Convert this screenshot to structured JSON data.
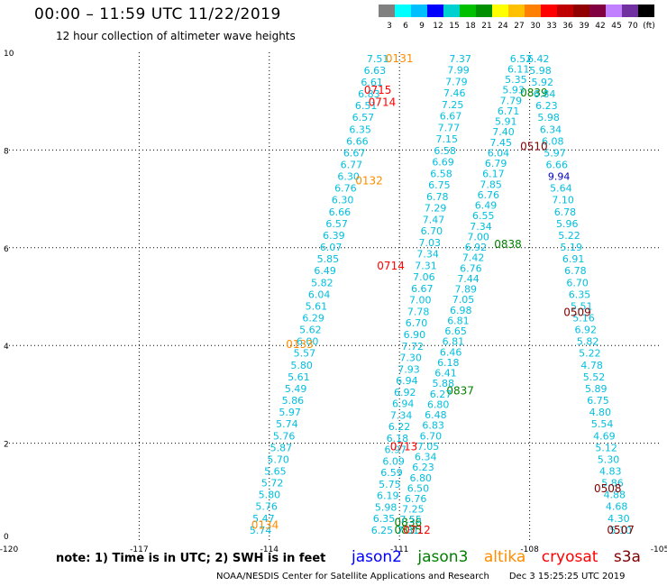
{
  "header": {
    "title": "00:00 – 11:59 UTC 11/22/2019",
    "subtitle": "12 hour collection of altimeter wave heights"
  },
  "color_scale": {
    "swatches": [
      "#808080",
      "#00ffff",
      "#00bfff",
      "#0000ff",
      "#00d0d0",
      "#00c000",
      "#009000",
      "#ffff00",
      "#ffc000",
      "#ff8000",
      "#ff0000",
      "#c00000",
      "#900000",
      "#800040",
      "#c080ff",
      "#7030a0",
      "#000000"
    ],
    "labels": [
      "3",
      "6",
      "9",
      "12",
      "15",
      "18",
      "21",
      "24",
      "27",
      "30",
      "33",
      "36",
      "39",
      "42",
      "45",
      "70",
      "(ft)"
    ]
  },
  "footer": {
    "note": "note:  1) Time is in UTC; 2) SWH is in feet",
    "satellites": [
      {
        "name": "jason2",
        "color": "#0000ff"
      },
      {
        "name": "jason3",
        "color": "#008000"
      },
      {
        "name": "altika",
        "color": "#ff8c00"
      },
      {
        "name": "cryosat",
        "color": "#ff0000"
      },
      {
        "name": "s3a",
        "color": "#800000"
      }
    ],
    "credit": "NOAA/NESDIS Center for Satellite Applications and Research",
    "timestamp": "Dec  3 15:25:25 UTC 2019"
  },
  "chart_data": {
    "type": "scatter",
    "xlim": [
      -120,
      -105
    ],
    "ylim": [
      0,
      10
    ],
    "x_ticks": [
      "-120",
      "-117",
      "-114",
      "-111",
      "-108",
      "-105"
    ],
    "y_ticks": [
      "0",
      "2",
      "4",
      "6",
      "8",
      "10"
    ],
    "grid": true,
    "tracks": [
      {
        "name": "0134",
        "satellite": "altika",
        "start": [
          -114.2,
          0.15
        ],
        "end": [
          -111.5,
          9.8
        ],
        "values": [
          "5.74",
          "5.47",
          "5.76",
          "5.80",
          "5.72",
          "5.65",
          "5.70",
          "5.87",
          "5.76",
          "5.74",
          "5.97",
          "5.86",
          "5.49",
          "5.61",
          "5.80",
          "5.57",
          "6.00",
          "5.62",
          "6.29",
          "5.61",
          "6.04",
          "5.82",
          "6.49",
          "5.85",
          "6.07",
          "6.39",
          "6.57",
          "6.66",
          "6.30",
          "6.76",
          "6.30",
          "6.77",
          "6.67",
          "6.66",
          "6.35",
          "6.57",
          "6.51",
          "6.83",
          "6.61",
          "6.63",
          "7.51"
        ],
        "labels": [
          {
            "text": "0134",
            "x": -114.1,
            "y": 0.25
          },
          {
            "text": "0133",
            "x": -113.3,
            "y": 3.95
          },
          {
            "text": "0132",
            "x": -111.7,
            "y": 7.3
          },
          {
            "text": "0131",
            "x": -111.0,
            "y": 9.8
          }
        ]
      },
      {
        "name": "0835",
        "satellite": "jason3",
        "start": [
          -111.4,
          0.15
        ],
        "end": [
          -109.6,
          9.8
        ],
        "values": [
          "6.25",
          "6.35",
          "5.98",
          "6.19",
          "5.75",
          "6.59",
          "6.09",
          "6.97",
          "6.18",
          "6.22",
          "7.34",
          "6.94",
          "6.92",
          "6.94",
          "7.93",
          "7.30",
          "7.72",
          "6.90",
          "6.70",
          "7.78",
          "7.00",
          "6.67",
          "7.06",
          "7.31",
          "7.34",
          "7.03",
          "6.70",
          "7.47",
          "7.29",
          "6.78",
          "6.75",
          "6.58",
          "6.69",
          "6.58",
          "7.15",
          "7.77",
          "6.67",
          "7.25",
          "7.46",
          "7.79",
          "7.99",
          "7.37"
        ],
        "labels": [
          {
            "text": "0835",
            "x": -110.8,
            "y": 0.15
          },
          {
            "text": "0836",
            "x": -110.8,
            "y": 0.3
          },
          {
            "text": "0837",
            "x": -109.6,
            "y": 3.0
          },
          {
            "text": "0838",
            "x": -108.5,
            "y": 6.0
          },
          {
            "text": "0839",
            "x": -107.9,
            "y": 9.1
          }
        ]
      },
      {
        "name": "0712",
        "satellite": "cryosat",
        "start": [
          -110.8,
          0.15
        ],
        "end": [
          -108.2,
          9.8
        ],
        "values": [
          "7.31",
          "7.55",
          "7.25",
          "6.76",
          "6.50",
          "6.80",
          "6.23",
          "6.34",
          "7.05",
          "6.70",
          "6.83",
          "6.48",
          "6.80",
          "6.27",
          "5.88",
          "6.41",
          "6.18",
          "6.46",
          "6.81",
          "6.65",
          "6.81",
          "6.98",
          "7.05",
          "7.89",
          "7.44",
          "6.76",
          "7.42",
          "6.92",
          "7.00",
          "7.34",
          "6.55",
          "6.49",
          "6.76",
          "7.85",
          "6.17",
          "6.79",
          "6.04",
          "7.45",
          "7.40",
          "5.91",
          "6.71",
          "7.79",
          "5.93",
          "5.35",
          "6.11",
          "6.52"
        ],
        "labels": [
          {
            "text": "0712",
            "x": -110.6,
            "y": 0.15
          },
          {
            "text": "0713",
            "x": -110.9,
            "y": 1.85
          },
          {
            "text": "0714",
            "x": -111.2,
            "y": 5.55
          },
          {
            "text": "0714",
            "x": -111.4,
            "y": 8.9
          },
          {
            "text": "0715",
            "x": -111.5,
            "y": 9.15
          }
        ]
      },
      {
        "name": "0507",
        "satellite": "s3a",
        "start": [
          -105.9,
          0.15
        ],
        "end": [
          -107.8,
          9.8
        ],
        "values": [
          "5.10",
          "4.30",
          "4.68",
          "4.88",
          "5.86",
          "4.83",
          "5.30",
          "5.12",
          "4.69",
          "5.54",
          "4.80",
          "6.75",
          "5.89",
          "5.52",
          "4.78",
          "5.22",
          "5.82",
          "6.92",
          "5.16",
          "5.51",
          "6.35",
          "6.70",
          "6.78",
          "6.91",
          "5.19",
          "5.22",
          "5.96",
          "6.78",
          "7.10",
          "5.64",
          "9.94",
          "6.66",
          "5.97",
          "6.08",
          "6.34",
          "5.98",
          "6.23",
          "6.84",
          "5.92",
          "5.98",
          "6.42"
        ],
        "labels": [
          {
            "text": "0507",
            "x": -105.9,
            "y": 0.15
          },
          {
            "text": "0508",
            "x": -106.2,
            "y": 1.0
          },
          {
            "text": "0509",
            "x": -106.9,
            "y": 4.6
          },
          {
            "text": "0510",
            "x": -107.9,
            "y": 8.0
          }
        ]
      }
    ]
  }
}
